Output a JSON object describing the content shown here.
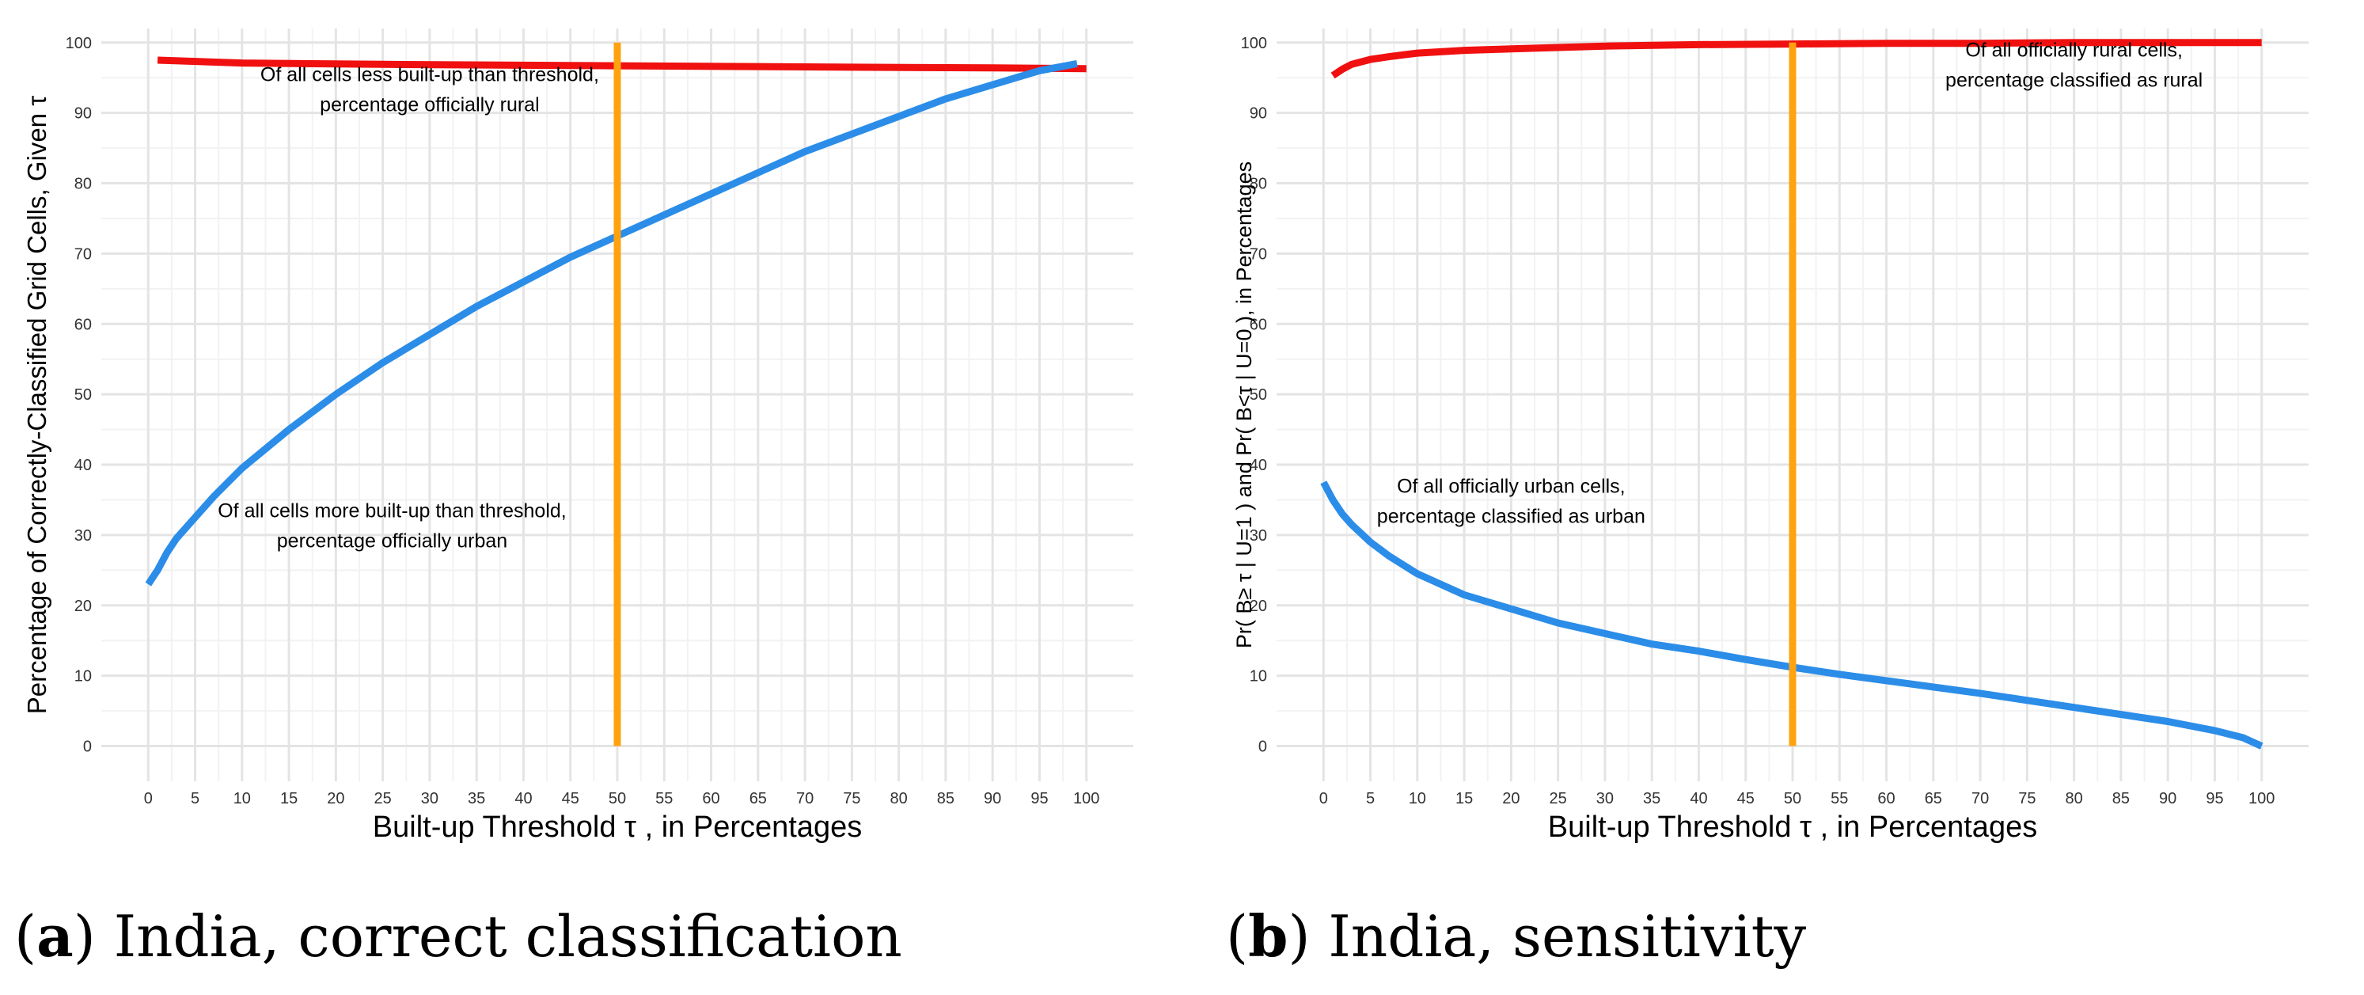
{
  "colors": {
    "rural_line": "#f01010",
    "urban_line": "#2b8de8",
    "threshold_line": "#ffa20f",
    "grid_major": "#e4e4e4",
    "grid_minor": "#f2f2f2"
  },
  "panels": [
    {
      "caption_letter": "a",
      "caption_text": "India, correct classification"
    },
    {
      "caption_letter": "b",
      "caption_text": "India, sensitivity"
    }
  ],
  "chart_data": [
    {
      "type": "line",
      "xlabel": "Built-up Threshold τ , in Percentages",
      "ylabel": "Percentage of Correctly-Classified Grid Cells, Given τ",
      "xlim": [
        -5,
        105
      ],
      "ylim": [
        -5,
        102
      ],
      "xticks": [
        0,
        5,
        10,
        15,
        20,
        25,
        30,
        35,
        40,
        45,
        50,
        55,
        60,
        65,
        70,
        75,
        80,
        85,
        90,
        95,
        100
      ],
      "yticks": [
        0,
        10,
        20,
        30,
        40,
        50,
        60,
        70,
        80,
        90,
        100
      ],
      "threshold_x": 50,
      "series": [
        {
          "name": "rural",
          "x": [
            1,
            10,
            25,
            50,
            75,
            90,
            100
          ],
          "y": [
            97.5,
            97.1,
            96.9,
            96.7,
            96.5,
            96.4,
            96.3
          ]
        },
        {
          "name": "urban",
          "x": [
            0,
            1,
            2,
            3,
            5,
            7,
            10,
            15,
            20,
            25,
            30,
            35,
            40,
            45,
            50,
            55,
            60,
            65,
            70,
            75,
            80,
            85,
            90,
            95,
            99
          ],
          "y": [
            23,
            25,
            27.5,
            29.5,
            32.5,
            35.5,
            39.5,
            45,
            50,
            54.5,
            58.5,
            62.5,
            66,
            69.5,
            72.5,
            75.5,
            78.5,
            81.5,
            84.5,
            87,
            89.5,
            92,
            94,
            96,
            97
          ]
        }
      ],
      "annotations": [
        {
          "x": 30,
          "y": 94.5,
          "lines": [
            "Of all cells less built-up than threshold,",
            "percentage officially rural"
          ]
        },
        {
          "x": 26,
          "y": 32.5,
          "lines": [
            "Of all cells more built-up than threshold,",
            "percentage officially urban"
          ]
        }
      ]
    },
    {
      "type": "line",
      "xlabel": "Built-up Threshold τ , in Percentages",
      "ylabel": "Pr(  B≥ τ   |   U=1  ) and Pr(  B<τ   |   U=0  ), in Percentages",
      "xlim": [
        -5,
        105
      ],
      "ylim": [
        -5,
        102
      ],
      "xticks": [
        0,
        5,
        10,
        15,
        20,
        25,
        30,
        35,
        40,
        45,
        50,
        55,
        60,
        65,
        70,
        75,
        80,
        85,
        90,
        95,
        100
      ],
      "yticks": [
        0,
        10,
        20,
        30,
        40,
        50,
        60,
        70,
        80,
        90,
        100
      ],
      "threshold_x": 50,
      "series": [
        {
          "name": "rural",
          "x": [
            1,
            2,
            3,
            5,
            7,
            10,
            15,
            20,
            25,
            30,
            40,
            50,
            60,
            70,
            80,
            90,
            100
          ],
          "y": [
            95.3,
            96.2,
            96.9,
            97.6,
            98.0,
            98.5,
            98.9,
            99.1,
            99.3,
            99.5,
            99.7,
            99.8,
            99.9,
            99.9,
            100,
            100,
            100
          ]
        },
        {
          "name": "urban",
          "x": [
            0,
            1,
            2,
            3,
            5,
            7,
            10,
            15,
            20,
            25,
            30,
            35,
            40,
            45,
            50,
            55,
            60,
            65,
            70,
            75,
            80,
            85,
            90,
            95,
            98,
            100
          ],
          "y": [
            37.5,
            35,
            33,
            31.5,
            29,
            27,
            24.5,
            21.5,
            19.5,
            17.5,
            16,
            14.5,
            13.5,
            12.3,
            11.2,
            10.2,
            9.3,
            8.4,
            7.5,
            6.5,
            5.5,
            4.5,
            3.5,
            2.2,
            1.2,
            0
          ]
        }
      ],
      "annotations": [
        {
          "x": 80,
          "y": 98,
          "lines": [
            "Of all officially rural cells,",
            "percentage classified as rural"
          ]
        },
        {
          "x": 20,
          "y": 36,
          "lines": [
            "Of all officially urban cells,",
            "percentage classified as urban"
          ]
        }
      ]
    }
  ]
}
